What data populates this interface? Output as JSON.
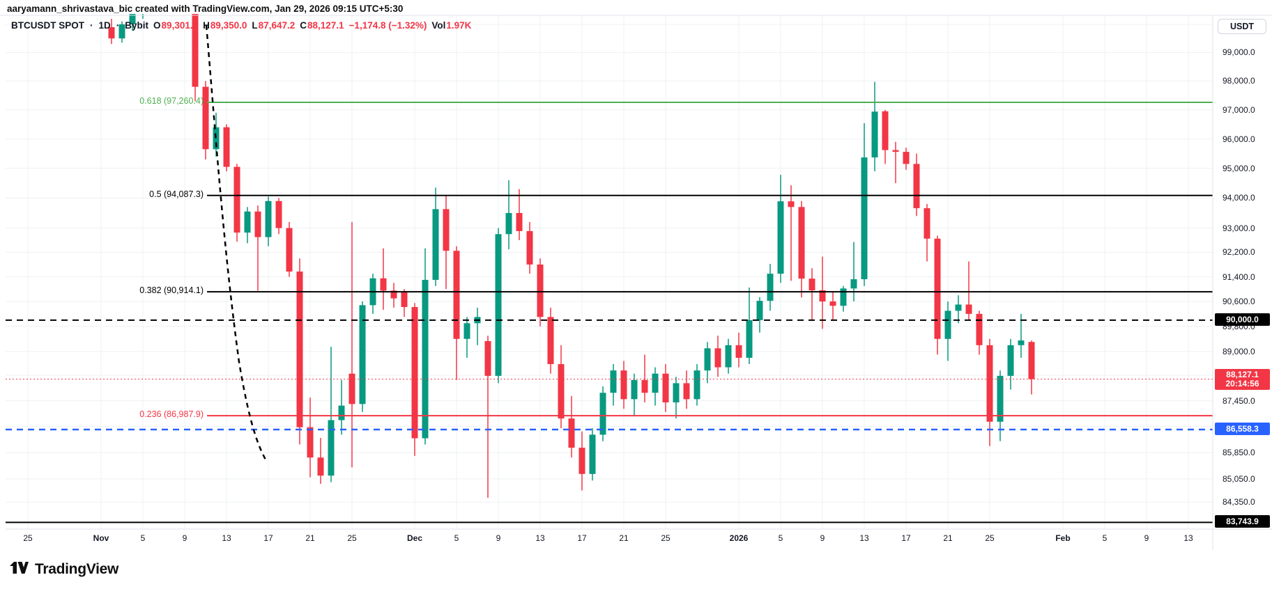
{
  "attribution": "aaryamann_shrivastava_bic created with TradingView.com, Jan 29, 2026 09:15 UTC+5:30",
  "header": {
    "symbol": "BTCUSDT SPOT",
    "separator": "·",
    "interval": "1D",
    "exchange": "Bybit",
    "o_label": "O",
    "o_value": "89,301.9",
    "h_label": "H",
    "h_value": "89,350.0",
    "l_label": "L",
    "l_value": "87,647.2",
    "c_label": "C",
    "c_value": "88,127.1",
    "change": "−1,174.8 (−1.32%)",
    "vol_label": "Vol",
    "vol_value": "1.97K"
  },
  "price_axis": {
    "currency_button": "USDT",
    "labels": [
      "99,000.0",
      "98,000.0",
      "97,000.0",
      "96,000.0",
      "95,000.0",
      "94,000.0",
      "93,000.0",
      "92,200.0",
      "91,400.0",
      "90,600.0",
      "89,800.0",
      "89,000.0",
      "88,250.0",
      "87,450.0",
      "86,650.0",
      "85,850.0",
      "85,050.0",
      "84,350.0"
    ],
    "extra_gridline_values": [
      100000
    ]
  },
  "time_axis": {
    "ticks": [
      {
        "label": "25",
        "d": -8,
        "bold": false
      },
      {
        "label": "Nov",
        "d": -1,
        "bold": true
      },
      {
        "label": "5",
        "d": 3,
        "bold": false
      },
      {
        "label": "9",
        "d": 7,
        "bold": false
      },
      {
        "label": "13",
        "d": 11,
        "bold": false
      },
      {
        "label": "17",
        "d": 15,
        "bold": false
      },
      {
        "label": "21",
        "d": 19,
        "bold": false
      },
      {
        "label": "25",
        "d": 23,
        "bold": false
      },
      {
        "label": "Dec",
        "d": 29,
        "bold": true
      },
      {
        "label": "5",
        "d": 33,
        "bold": false
      },
      {
        "label": "9",
        "d": 37,
        "bold": false
      },
      {
        "label": "13",
        "d": 41,
        "bold": false
      },
      {
        "label": "17",
        "d": 45,
        "bold": false
      },
      {
        "label": "21",
        "d": 49,
        "bold": false
      },
      {
        "label": "25",
        "d": 53,
        "bold": false
      },
      {
        "label": "2026",
        "d": 60,
        "bold": true
      },
      {
        "label": "5",
        "d": 64,
        "bold": false
      },
      {
        "label": "9",
        "d": 68,
        "bold": false
      },
      {
        "label": "13",
        "d": 72,
        "bold": false
      },
      {
        "label": "17",
        "d": 76,
        "bold": false
      },
      {
        "label": "21",
        "d": 80,
        "bold": false
      },
      {
        "label": "25",
        "d": 84,
        "bold": false
      },
      {
        "label": "Feb",
        "d": 91,
        "bold": true
      },
      {
        "label": "5",
        "d": 95,
        "bold": false
      },
      {
        "label": "9",
        "d": 99,
        "bold": false
      },
      {
        "label": "13",
        "d": 103,
        "bold": false
      }
    ]
  },
  "fib_levels": [
    {
      "ratio": "0.618",
      "price_text": "97,260.4",
      "label": "0.618 (97,260.4)",
      "value": 97260.4,
      "color": "#4caf50"
    },
    {
      "ratio": "0.5",
      "price_text": "94,087.3",
      "label": "0.5 (94,087.3)",
      "value": 94087.3,
      "color": "#000000"
    },
    {
      "ratio": "0.382",
      "price_text": "90,914.1",
      "label": "0.382 (90,914.1)",
      "value": 90914.1,
      "color": "#000000"
    },
    {
      "ratio": "0.236",
      "price_text": "86,987.9",
      "label": "0.236 (86,987.9)",
      "value": 86987.9,
      "color": "#f23645"
    }
  ],
  "horizontal_lines": [
    {
      "name": "round-level-line",
      "value": 90000,
      "style": "dashed",
      "color": "#000000",
      "width": 2,
      "full_width": true
    },
    {
      "name": "blue-support-line",
      "value": 86558.3,
      "style": "dashed",
      "color": "#2962ff",
      "width": 2.5,
      "full_width": true
    },
    {
      "name": "fib-zero-line",
      "value": 83743.9,
      "style": "solid",
      "color": "#000000",
      "width": 2,
      "full_width": true
    },
    {
      "name": "last-price-line",
      "value": 88127.1,
      "style": "dotted",
      "color": "#f23645",
      "width": 1,
      "full_width": true
    }
  ],
  "badges": [
    {
      "name": "round-level-badge",
      "text": "90,000.0",
      "value": 90000,
      "bg": "#000000",
      "lines": 1
    },
    {
      "name": "last-price-badge",
      "text": "88,127.1",
      "countdown": "20:14:56",
      "value": 88127.1,
      "bg": "#f23645",
      "lines": 2
    },
    {
      "name": "blue-level-badge",
      "text": "86,558.3",
      "value": 86558.3,
      "bg": "#2962ff",
      "lines": 1
    },
    {
      "name": "fib-zero-badge",
      "text": "83,743.9",
      "value": 83743.9,
      "bg": "#000000",
      "lines": 1
    }
  ],
  "annotations": [
    {
      "name": "trend-curve",
      "type": "dashed-curve",
      "from": "Nov 10 breakdown high",
      "to": "Nov 21 low area",
      "color": "#000000"
    }
  ],
  "colors": {
    "up": "#089981",
    "down": "#f23645",
    "grid": "#eef0f3",
    "border": "#e0e3eb",
    "text": "#131722",
    "accent_blue": "#2962ff",
    "accent_red": "#f23645",
    "fib_green": "#4caf50"
  },
  "logo": {
    "text": "TradingView"
  },
  "chart_data": {
    "type": "candlestick",
    "symbol": "BTCUSDT",
    "exchange": "Bybit",
    "timeframe": "1D",
    "scale": "log",
    "ylabel": "USDT",
    "visible_price_range": [
      83500,
      100400
    ],
    "visible_date_range": [
      "2025-10-25",
      "2026-02-16"
    ],
    "grid": true,
    "columns": [
      "date",
      "open",
      "high",
      "low",
      "close"
    ],
    "candles": [
      [
        "Nov 2",
        99900,
        100200,
        99300,
        99500
      ],
      [
        "Nov 3",
        99500,
        100100,
        99350,
        100000
      ],
      [
        "Nov 4",
        100000,
        100600,
        99800,
        100450
      ],
      [
        "Nov 5",
        100450,
        101000,
        100200,
        100800
      ],
      [
        "Nov 6",
        100800,
        101500,
        100600,
        101200
      ],
      [
        "Nov 7",
        101200,
        101800,
        101000,
        101500
      ],
      [
        "Nov 8",
        101500,
        101900,
        101100,
        101300
      ],
      [
        "Nov 9",
        101300,
        101700,
        100900,
        101600
      ],
      [
        "Nov 10",
        101600,
        101700,
        97300,
        97800
      ],
      [
        "Nov 11",
        97800,
        98000,
        95300,
        95650
      ],
      [
        "Nov 12",
        95650,
        96900,
        95400,
        96400
      ],
      [
        "Nov 13",
        96400,
        96500,
        94900,
        95050
      ],
      [
        "Nov 14",
        95050,
        95150,
        92550,
        92850
      ],
      [
        "Nov 15",
        92850,
        93700,
        92500,
        93550
      ],
      [
        "Nov 16",
        93550,
        93750,
        90950,
        92700
      ],
      [
        "Nov 17",
        92700,
        94050,
        92400,
        93900
      ],
      [
        "Nov 18",
        93900,
        94000,
        92800,
        93000
      ],
      [
        "Nov 19",
        93000,
        93200,
        91400,
        91570
      ],
      [
        "Nov 20",
        91570,
        92000,
        86100,
        86630
      ],
      [
        "Nov 21",
        86630,
        87550,
        85100,
        85700
      ],
      [
        "Nov 22",
        85700,
        86300,
        84900,
        85150
      ],
      [
        "Nov 23",
        85150,
        89150,
        84950,
        86850
      ],
      [
        "Nov 24",
        86850,
        88100,
        86400,
        87300
      ],
      [
        "Nov 25",
        88300,
        93200,
        85400,
        87350
      ],
      [
        "Nov 26",
        87350,
        90600,
        87100,
        90480
      ],
      [
        "Nov 27",
        90480,
        91500,
        90200,
        91350
      ],
      [
        "Nov 28",
        91350,
        92330,
        90330,
        90950
      ],
      [
        "Nov 29",
        90950,
        91200,
        90400,
        90700
      ],
      [
        "Nov 30",
        90900,
        91000,
        90100,
        90420
      ],
      [
        "Dec 1",
        90420,
        90550,
        85750,
        86290
      ],
      [
        "Dec 2",
        86290,
        92330,
        86100,
        91300
      ],
      [
        "Dec 3",
        91300,
        94350,
        91100,
        93630
      ],
      [
        "Dec 4",
        93630,
        94100,
        91000,
        92250
      ],
      [
        "Dec 5",
        92250,
        92400,
        88100,
        89400
      ],
      [
        "Dec 6",
        89400,
        90100,
        88800,
        89900
      ],
      [
        "Dec 7",
        89900,
        90400,
        89200,
        90100
      ],
      [
        "Dec 8",
        89330,
        89500,
        84480,
        88230
      ],
      [
        "Dec 9",
        88230,
        93000,
        88000,
        92800
      ],
      [
        "Dec 10",
        92800,
        94600,
        92300,
        93500
      ],
      [
        "Dec 11",
        93500,
        94300,
        92600,
        92900
      ],
      [
        "Dec 12",
        92900,
        93200,
        91500,
        91800
      ],
      [
        "Dec 13",
        91800,
        92000,
        89800,
        90100
      ],
      [
        "Dec 14",
        90100,
        90400,
        88300,
        88600
      ],
      [
        "Dec 15",
        88600,
        89200,
        86600,
        86900
      ],
      [
        "Dec 16",
        86900,
        87600,
        85700,
        86000
      ],
      [
        "Dec 17",
        86000,
        86500,
        84700,
        85200
      ],
      [
        "Dec 18",
        85200,
        86600,
        85000,
        86400
      ],
      [
        "Dec 19",
        86400,
        87900,
        86200,
        87700
      ],
      [
        "Dec 20",
        87700,
        88600,
        87300,
        88400
      ],
      [
        "Dec 21",
        88400,
        88700,
        87200,
        87500
      ],
      [
        "Dec 22",
        87500,
        88300,
        87000,
        88100
      ],
      [
        "Dec 23",
        88100,
        88900,
        87400,
        87700
      ],
      [
        "Dec 24",
        87700,
        88500,
        87300,
        88300
      ],
      [
        "Dec 25",
        88300,
        88600,
        87100,
        87400
      ],
      [
        "Dec 26",
        87400,
        88200,
        86900,
        88000
      ],
      [
        "Dec 27",
        88000,
        88400,
        87200,
        87500
      ],
      [
        "Dec 28",
        87500,
        88600,
        87300,
        88400
      ],
      [
        "Dec 29",
        88400,
        89300,
        88000,
        89100
      ],
      [
        "Dec 30",
        89100,
        89500,
        88200,
        88500
      ],
      [
        "Dec 31",
        88500,
        89400,
        88300,
        89200
      ],
      [
        "Jan 1",
        89200,
        89600,
        88500,
        88800
      ],
      [
        "Jan 2",
        88800,
        91050,
        88600,
        90000
      ],
      [
        "Jan 3",
        90000,
        90740,
        89600,
        90620
      ],
      [
        "Jan 4",
        90620,
        91820,
        90300,
        91500
      ],
      [
        "Jan 5",
        91500,
        94780,
        91200,
        93890
      ],
      [
        "Jan 6",
        93890,
        94430,
        91270,
        93700
      ],
      [
        "Jan 7",
        93700,
        93900,
        90730,
        91340
      ],
      [
        "Jan 8",
        91340,
        91680,
        90000,
        90960
      ],
      [
        "Jan 9",
        90960,
        92060,
        89720,
        90600
      ],
      [
        "Jan 10",
        90600,
        90900,
        90000,
        90460
      ],
      [
        "Jan 11",
        90460,
        91100,
        90270,
        91020
      ],
      [
        "Jan 12",
        91020,
        92540,
        90600,
        91320
      ],
      [
        "Jan 13",
        91320,
        96540,
        91100,
        95370
      ],
      [
        "Jan 14",
        95370,
        97970,
        94900,
        96940
      ],
      [
        "Jan 15",
        96950,
        97000,
        95150,
        95620
      ],
      [
        "Jan 16",
        95620,
        95900,
        94500,
        95560
      ],
      [
        "Jan 17",
        95560,
        95700,
        94950,
        95150
      ],
      [
        "Jan 18",
        95150,
        95500,
        93400,
        93660
      ],
      [
        "Jan 19",
        93660,
        93800,
        91900,
        92650
      ],
      [
        "Jan 20",
        92650,
        92750,
        88900,
        89400
      ],
      [
        "Jan 21",
        89400,
        90600,
        88700,
        90300
      ],
      [
        "Jan 22",
        90300,
        90800,
        89900,
        90500
      ],
      [
        "Jan 23",
        90500,
        91900,
        90000,
        90200
      ],
      [
        "Jan 24",
        90200,
        90300,
        88900,
        89200
      ],
      [
        "Jan 25",
        89200,
        89400,
        86050,
        86800
      ],
      [
        "Jan 26",
        86800,
        88400,
        86200,
        88230
      ],
      [
        "Jan 27",
        88230,
        89400,
        87800,
        89200
      ],
      [
        "Jan 28",
        89200,
        90200,
        88800,
        89350
      ],
      [
        "Jan 29",
        89301.9,
        89350.0,
        87647.2,
        88127.1
      ]
    ]
  }
}
